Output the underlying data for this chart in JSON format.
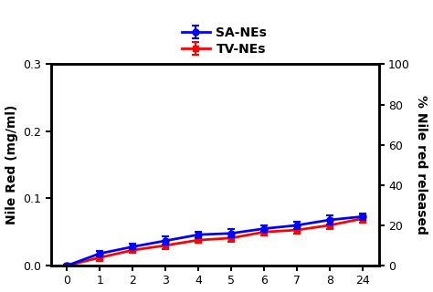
{
  "x_positions": [
    0,
    1,
    2,
    3,
    4,
    5,
    6,
    7,
    8,
    9
  ],
  "x_labels": [
    "0",
    "1",
    "2",
    "3",
    "4",
    "5",
    "6",
    "7",
    "8",
    "24"
  ],
  "sa_nes_y": [
    0.0,
    0.018,
    0.028,
    0.037,
    0.046,
    0.048,
    0.055,
    0.06,
    0.068,
    0.073
  ],
  "sa_nes_err": [
    0.001,
    0.004,
    0.004,
    0.006,
    0.005,
    0.006,
    0.005,
    0.005,
    0.007,
    0.005
  ],
  "tv_nes_y": [
    0.0,
    0.012,
    0.023,
    0.03,
    0.038,
    0.041,
    0.05,
    0.053,
    0.06,
    0.07
  ],
  "tv_nes_err": [
    0.001,
    0.005,
    0.004,
    0.005,
    0.004,
    0.005,
    0.005,
    0.005,
    0.006,
    0.006
  ],
  "sa_color": "#0000ff",
  "tv_color": "#ff0000",
  "ylabel_left": "Nile Red (mg/ml)",
  "ylabel_right": "% Nile red released",
  "ylim_left": [
    0,
    0.3
  ],
  "ylim_right": [
    0,
    100
  ],
  "yticks_left": [
    0.0,
    0.1,
    0.2,
    0.3
  ],
  "yticks_right": [
    0,
    20,
    40,
    60,
    80,
    100
  ],
  "legend_sa": "SA-NEs",
  "legend_tv": "TV-NEs",
  "background_color": "#ffffff",
  "linewidth": 2.0,
  "markersize": 5,
  "spine_linewidth": 1.8
}
